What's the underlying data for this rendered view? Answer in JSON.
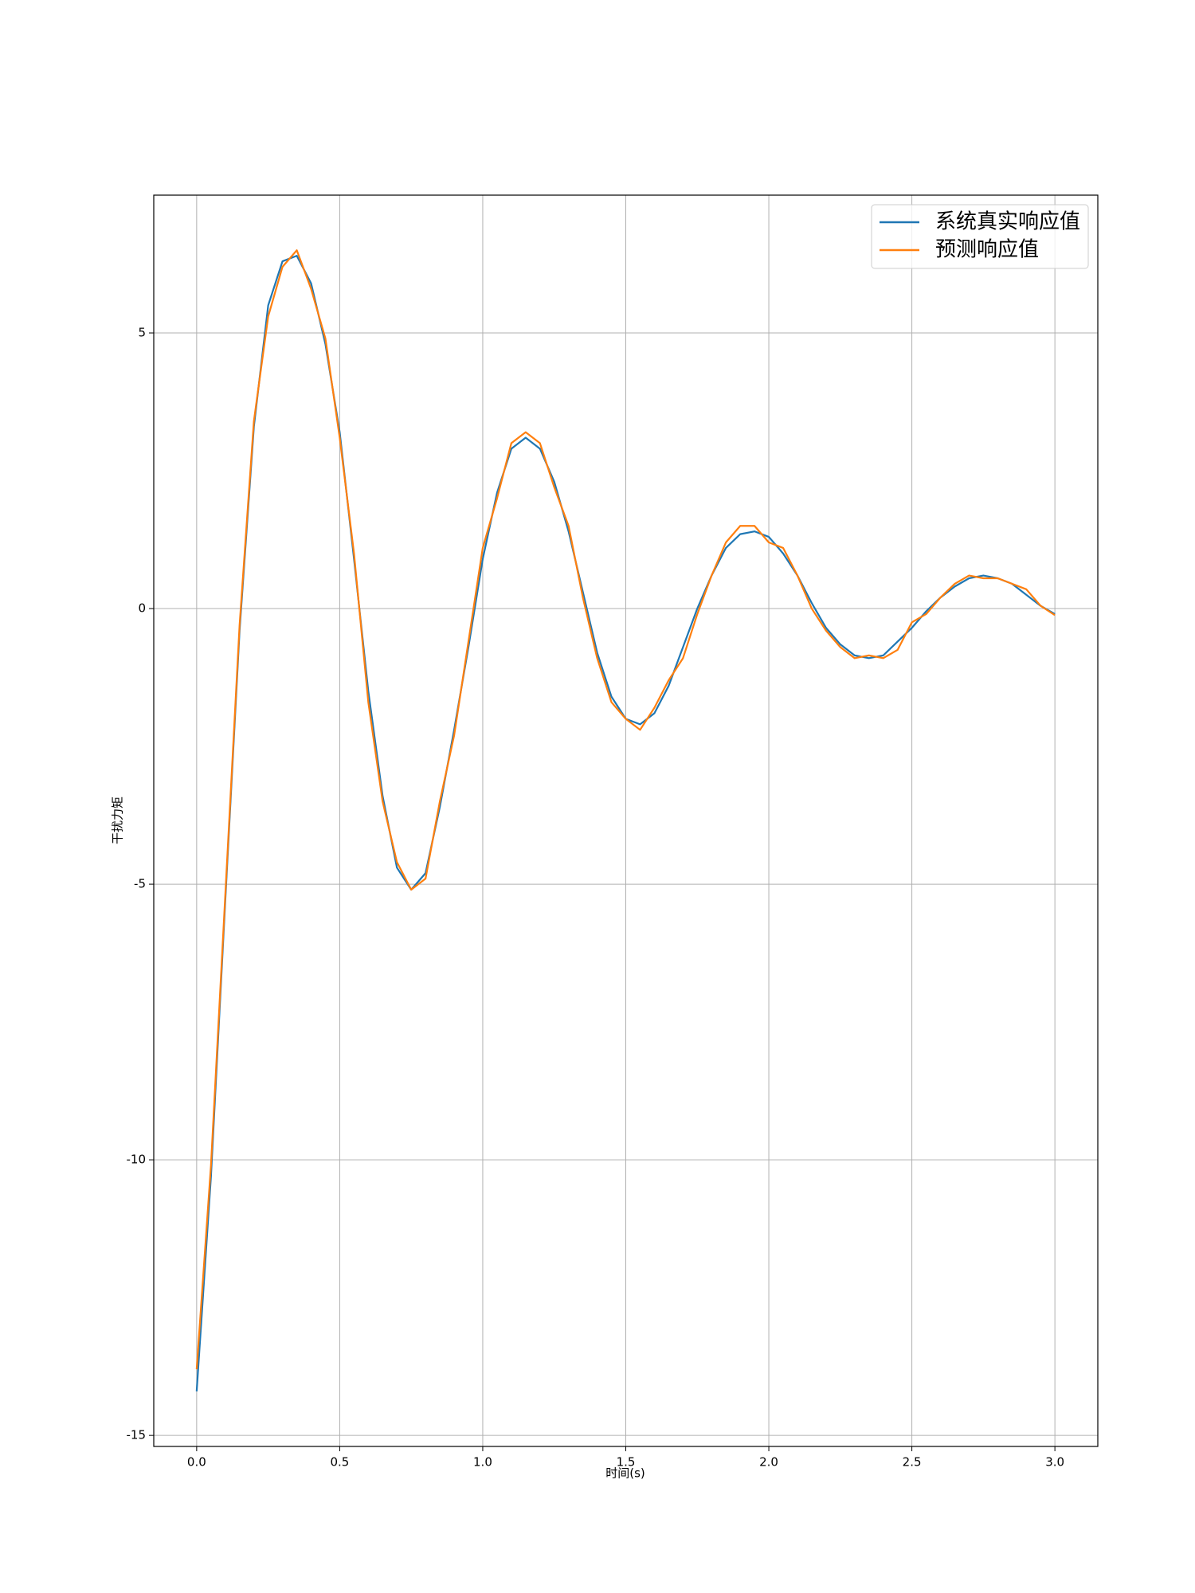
{
  "chart_data": {
    "type": "line",
    "xlabel": "时间(s)",
    "ylabel": "干扰力矩",
    "x": [
      0,
      0.05,
      0.1,
      0.15,
      0.2,
      0.25,
      0.3,
      0.35,
      0.4,
      0.45,
      0.5,
      0.55,
      0.6,
      0.65,
      0.7,
      0.75,
      0.8,
      0.85,
      0.9,
      0.95,
      1.0,
      1.05,
      1.1,
      1.15,
      1.2,
      1.25,
      1.3,
      1.35,
      1.4,
      1.45,
      1.5,
      1.55,
      1.6,
      1.65,
      1.7,
      1.75,
      1.8,
      1.85,
      1.9,
      1.95,
      2.0,
      2.05,
      2.1,
      2.15,
      2.2,
      2.25,
      2.3,
      2.35,
      2.4,
      2.45,
      2.5,
      2.55,
      2.6,
      2.65,
      2.7,
      2.75,
      2.8,
      2.85,
      2.9,
      2.95,
      3.0
    ],
    "series": [
      {
        "name": "系统真实响应值",
        "color": "#1f77b4",
        "values": [
          -14.2,
          -10.3,
          -5.3,
          -0.4,
          3.3,
          5.5,
          6.3,
          6.4,
          5.9,
          4.8,
          3.2,
          0.9,
          -1.5,
          -3.4,
          -4.7,
          -5.1,
          -4.8,
          -3.6,
          -2.2,
          -0.7,
          0.9,
          2.1,
          2.9,
          3.1,
          2.9,
          2.3,
          1.4,
          0.3,
          -0.8,
          -1.6,
          -2.0,
          -2.1,
          -1.9,
          -1.4,
          -0.7,
          0.0,
          0.6,
          1.1,
          1.35,
          1.4,
          1.3,
          1.0,
          0.6,
          0.1,
          -0.35,
          -0.65,
          -0.85,
          -0.9,
          -0.85,
          -0.6,
          -0.35,
          -0.05,
          0.2,
          0.4,
          0.55,
          0.6,
          0.55,
          0.45,
          0.25,
          0.05,
          -0.1
        ]
      },
      {
        "name": "预测响应值",
        "color": "#ff7f0e",
        "values": [
          -13.8,
          -10.1,
          -5.2,
          -0.3,
          3.4,
          5.3,
          6.2,
          6.5,
          5.8,
          4.9,
          3.1,
          1.0,
          -1.7,
          -3.5,
          -4.6,
          -5.1,
          -4.9,
          -3.5,
          -2.3,
          -0.6,
          1.1,
          2.0,
          3.0,
          3.2,
          3.0,
          2.2,
          1.5,
          0.2,
          -0.9,
          -1.7,
          -2.0,
          -2.2,
          -1.8,
          -1.3,
          -0.9,
          -0.1,
          0.6,
          1.2,
          1.5,
          1.5,
          1.2,
          1.1,
          0.6,
          0.0,
          -0.4,
          -0.7,
          -0.9,
          -0.85,
          -0.9,
          -0.75,
          -0.25,
          -0.1,
          0.2,
          0.45,
          0.6,
          0.55,
          0.55,
          0.45,
          0.35,
          0.05,
          -0.12
        ]
      }
    ],
    "xlim": [
      -0.15,
      3.15
    ],
    "ylim": [
      -15.2,
      7.5
    ],
    "xticks": [
      {
        "value": 0,
        "label": "0.0"
      },
      {
        "value": 0.5,
        "label": "0.5"
      },
      {
        "value": 1,
        "label": "1.0"
      },
      {
        "value": 1.5,
        "label": "1.5"
      },
      {
        "value": 2,
        "label": "2.0"
      },
      {
        "value": 2.5,
        "label": "2.5"
      },
      {
        "value": 3,
        "label": "3.0"
      }
    ],
    "yticks": [
      -15,
      -10,
      -5,
      0,
      5
    ],
    "grid": true,
    "legend": "upper right"
  }
}
